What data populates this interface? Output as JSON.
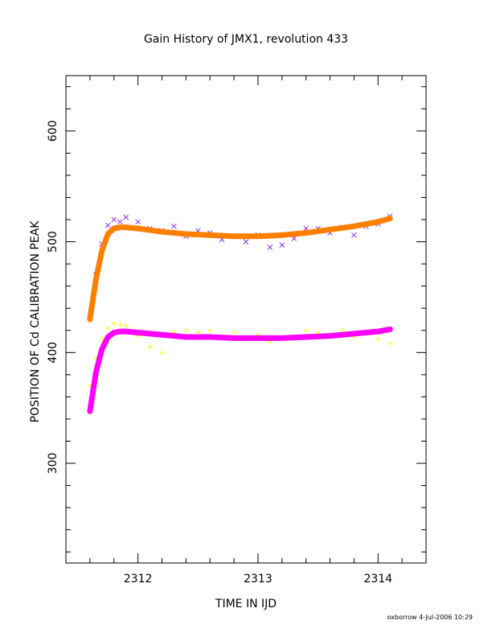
{
  "chart_data": {
    "type": "scatter",
    "title": "Gain History of JMX1, revolution 433",
    "xlabel": "TIME IN IJD",
    "ylabel": "POSITION OF Cd CALIBRATION PEAK",
    "xlim": [
      2311.4,
      2314.4
    ],
    "ylim": [
      210,
      650
    ],
    "x_ticks": [
      "2312",
      "2313",
      "2314"
    ],
    "y_ticks": [
      "300",
      "400",
      "500",
      "600"
    ],
    "grid": false,
    "series": [
      {
        "marker": "x",
        "color": "#8a2be2",
        "x": [
          2311.6,
          2311.65,
          2311.7,
          2311.75,
          2311.8,
          2311.85,
          2311.9,
          2312.0,
          2312.1,
          2312.2,
          2312.3,
          2312.4,
          2312.5,
          2312.6,
          2312.7,
          2312.8,
          2312.9,
          2313.0,
          2313.1,
          2313.2,
          2313.3,
          2313.4,
          2313.5,
          2313.6,
          2313.7,
          2313.8,
          2313.9,
          2314.0,
          2314.1
        ],
        "y": [
          432,
          470,
          498,
          515,
          520,
          518,
          522,
          518,
          512,
          510,
          514,
          505,
          510,
          508,
          502,
          505,
          500,
          506,
          495,
          497,
          503,
          512,
          512,
          508,
          513,
          506,
          514,
          516,
          523
        ]
      },
      {
        "marker": "line",
        "color": "#ff7f00",
        "x": [
          2311.6,
          2311.65,
          2311.7,
          2311.75,
          2311.8,
          2311.85,
          2311.9,
          2312.0,
          2312.2,
          2312.4,
          2312.6,
          2312.8,
          2313.0,
          2313.2,
          2313.4,
          2313.6,
          2313.8,
          2314.0,
          2314.1
        ],
        "y": [
          430,
          466,
          492,
          507,
          512,
          513,
          513,
          512,
          509,
          507,
          506,
          505,
          505,
          506,
          508,
          511,
          514,
          518,
          521
        ]
      },
      {
        "marker": "+",
        "color": "#ffff00",
        "x": [
          2311.6,
          2311.65,
          2311.7,
          2311.75,
          2311.8,
          2311.85,
          2311.9,
          2312.0,
          2312.1,
          2312.2,
          2312.3,
          2312.4,
          2312.5,
          2312.6,
          2312.7,
          2312.8,
          2312.9,
          2313.0,
          2313.1,
          2313.2,
          2313.3,
          2313.4,
          2313.5,
          2313.6,
          2313.7,
          2313.8,
          2313.9,
          2314.0,
          2314.1
        ],
        "y": [
          370,
          395,
          412,
          422,
          426,
          425,
          424,
          415,
          405,
          400,
          418,
          420,
          418,
          420,
          415,
          418,
          412,
          416,
          410,
          414,
          412,
          420,
          418,
          416,
          420,
          414,
          418,
          412,
          408
        ]
      },
      {
        "marker": "line",
        "color": "#ff00ff",
        "x": [
          2311.6,
          2311.65,
          2311.7,
          2311.75,
          2311.8,
          2311.85,
          2311.9,
          2312.0,
          2312.2,
          2312.4,
          2312.6,
          2312.8,
          2313.0,
          2313.2,
          2313.4,
          2313.6,
          2313.8,
          2314.0,
          2314.1
        ],
        "y": [
          347,
          382,
          403,
          414,
          418,
          419,
          419,
          418,
          416,
          414,
          414,
          413,
          413,
          413,
          414,
          415,
          417,
          419,
          421
        ]
      }
    ]
  },
  "footer": {
    "signature": "oxborrow  4-Jul-2006 10:29"
  }
}
